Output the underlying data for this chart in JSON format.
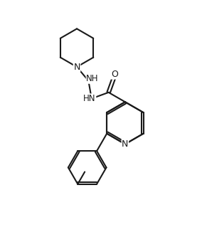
{
  "background_color": "#ffffff",
  "line_color": "#1a1a1a",
  "line_width": 1.5,
  "font_size": 8.5,
  "figsize": [
    2.84,
    3.26
  ],
  "dpi": 100,
  "xlim": [
    0,
    10
  ],
  "ylim": [
    0,
    11.5
  ]
}
